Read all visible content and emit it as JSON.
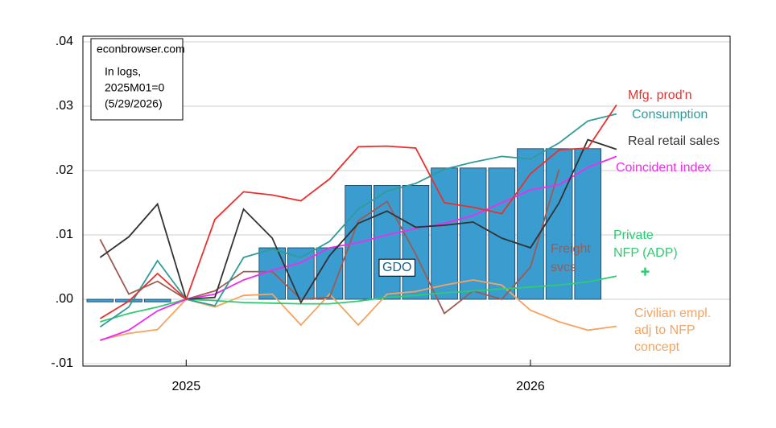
{
  "chart_data": {
    "type": "line",
    "annotations": [
      "econbrowser.com",
      "In logs,",
      "2025M01=0",
      "(5/29/2026)"
    ],
    "x": [
      2024.75,
      2024.8333,
      2024.9167,
      2025,
      2025.0833,
      2025.1667,
      2025.25,
      2025.3333,
      2025.4167,
      2025.5,
      2025.5833,
      2025.6667,
      2025.75,
      2025.8333,
      2025.9167,
      2026,
      2026.0833,
      2026.1667,
      2026.25,
      2026.3333
    ],
    "xlim": [
      2024.7,
      2026.58
    ],
    "xticks": [
      2025,
      2026
    ],
    "ylim": [
      -0.01,
      0.04
    ],
    "yticks": [
      {
        "value": -0.01,
        "label": "-.01"
      },
      {
        "value": 0,
        "label": ".00"
      },
      {
        "value": 0.01,
        "label": ".01"
      },
      {
        "value": 0.02,
        "label": ".02"
      },
      {
        "value": 0.03,
        "label": ".03"
      },
      {
        "value": 0.04,
        "label": ".04"
      }
    ],
    "grid": true,
    "series": [
      {
        "name": "GDO",
        "type": "bar",
        "color": "#3b9ccf",
        "values": [
          -0.0004,
          -0.0004,
          -0.0004,
          null,
          null,
          null,
          0.008,
          0.008,
          0.008,
          0.0177,
          0.0177,
          0.0177,
          0.0204,
          0.0204,
          0.0204,
          0.0234,
          0.0234,
          0.0234,
          null,
          null
        ]
      },
      {
        "name": "Civilian empl.\nadj to NFP\nconcept",
        "color": "#f4a460",
        "values": [
          -0.0063,
          -0.0053,
          -0.0047,
          0,
          -0.0012,
          0.0006,
          0.0008,
          -0.004,
          0.0008,
          -0.004,
          0.0008,
          0.0012,
          0.0022,
          0.003,
          0.0022,
          -0.0017,
          -0.0035,
          -0.0048,
          -0.0042,
          null
        ]
      },
      {
        "name": "Freight\nsvcs",
        "color": "#9c5b53",
        "values": [
          0.0093,
          0.0008,
          0.0028,
          0,
          0.0013,
          0.0043,
          0.0043,
          0.0,
          0.0003,
          0.0122,
          0.0152,
          0.007,
          -0.0022,
          0.0013,
          0.0,
          0.005,
          0.0202,
          null,
          null,
          null
        ]
      },
      {
        "name": "Private\nNFP (ADP)",
        "color": "#2ecc71",
        "values": [
          -0.0035,
          -0.0022,
          -0.0012,
          0,
          -0.0002,
          -0.0005,
          -0.0006,
          -0.0007,
          -0.0007,
          -0.0003,
          0.0003,
          0.0006,
          0.001,
          0.0013,
          0.0016,
          0.0019,
          0.0022,
          0.0027,
          0.0036,
          null
        ],
        "marker_values": [
          null,
          null,
          null,
          null,
          null,
          null,
          null,
          null,
          null,
          null,
          null,
          null,
          null,
          null,
          null,
          null,
          null,
          null,
          null,
          0.0043
        ]
      },
      {
        "name": "Coincident index",
        "color": "#ee2cee",
        "values": [
          -0.0064,
          -0.0048,
          -0.0018,
          0,
          0.0008,
          0.003,
          0.0045,
          0.0057,
          0.008,
          0.0088,
          0.01,
          0.011,
          0.0118,
          0.013,
          0.015,
          0.017,
          0.0178,
          0.0205,
          0.0222,
          null
        ]
      },
      {
        "name": "Real retail sales",
        "color": "#333333",
        "values": [
          0.0065,
          0.0097,
          0.0148,
          0,
          0.0003,
          0.014,
          0.0095,
          -0.0005,
          0.0068,
          0.0118,
          0.0137,
          0.0112,
          0.0115,
          0.012,
          0.0095,
          0.008,
          0.015,
          0.0248,
          0.0233,
          null
        ]
      },
      {
        "name": "Consumption",
        "color": "#2f9c99",
        "values": [
          -0.0043,
          -0.0012,
          0.006,
          0,
          -0.001,
          0.0065,
          0.0078,
          0.0065,
          0.009,
          0.014,
          0.0168,
          0.018,
          0.0202,
          0.0213,
          0.0222,
          0.0218,
          0.0243,
          0.0277,
          0.0288,
          null
        ]
      },
      {
        "name": "Mfg. prod'n",
        "color": "#e8312f",
        "values": [
          -0.003,
          -0.0003,
          0.004,
          0,
          0.0124,
          0.0167,
          0.0162,
          0.0153,
          0.0187,
          0.0237,
          0.0238,
          0.0235,
          0.015,
          0.0143,
          0.0133,
          0.0195,
          0.0232,
          0.0235,
          0.0302,
          null
        ]
      }
    ]
  }
}
